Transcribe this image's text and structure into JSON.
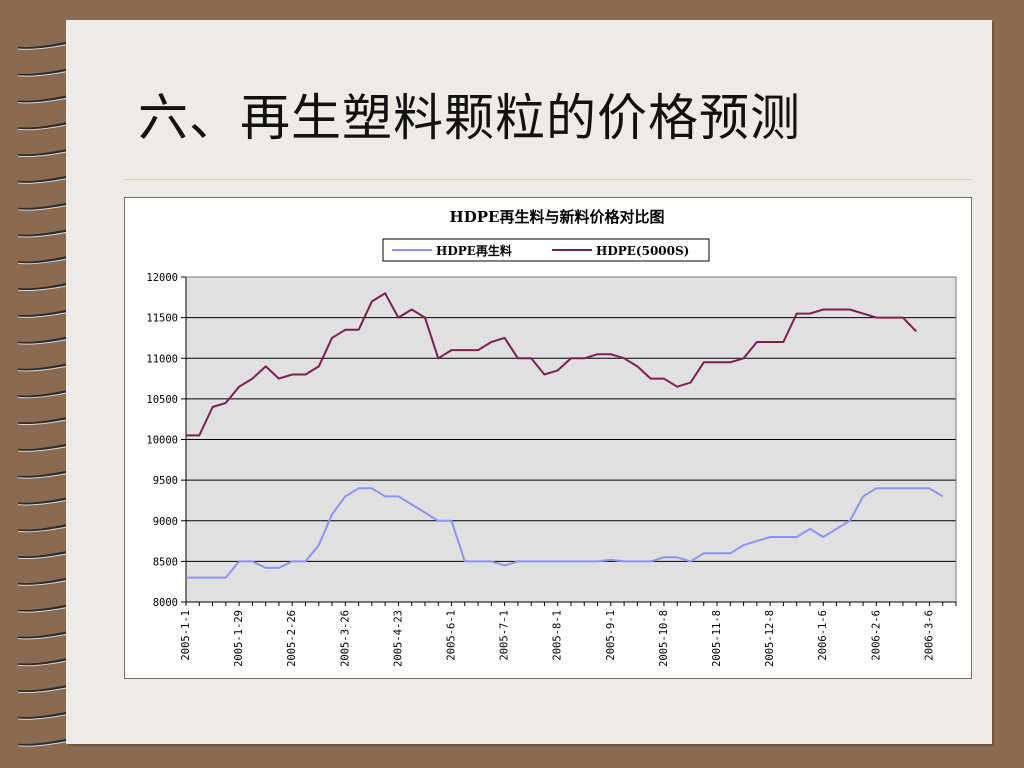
{
  "slide": {
    "title": "六、再生塑料颗粒的价格预测"
  },
  "colors": {
    "background": "#8b6a52",
    "slide": "#eeeae6",
    "plot_area": "#e0e0e0",
    "series_recycled": "#8c94f0",
    "series_virgin": "#7b2150"
  },
  "chart_data": {
    "type": "line",
    "title": "HDPE再生料与新料价格对比图",
    "xlabel": "",
    "ylabel": "",
    "ylim": [
      8000,
      12000
    ],
    "yticks": [
      8000,
      8500,
      9000,
      9500,
      10000,
      10500,
      11000,
      11500,
      12000
    ],
    "grid": true,
    "legend": "top-center",
    "x_tick_labels": [
      "2005-1-1",
      "2005-1-29",
      "2005-2-26",
      "2005-3-26",
      "2005-4-23",
      "2005-6-1",
      "2005-7-1",
      "2005-8-1",
      "2005-9-1",
      "2005-10-8",
      "2005-11-8",
      "2005-12-8",
      "2006-1-6",
      "2006-2-6",
      "2006-3-6"
    ],
    "x_tick_positions": [
      0,
      4,
      8,
      12,
      16,
      20,
      24,
      28,
      32,
      36,
      40,
      44,
      48,
      52,
      56
    ],
    "x_range": [
      0,
      58
    ],
    "series": [
      {
        "name": "HDPE再生料",
        "color": "#8c94f0",
        "x": [
          0,
          1,
          2,
          3,
          4,
          5,
          6,
          7,
          8,
          9,
          10,
          11,
          12,
          13,
          14,
          15,
          16,
          17,
          18,
          19,
          20,
          21,
          22,
          23,
          24,
          25,
          26,
          27,
          28,
          29,
          30,
          31,
          32,
          33,
          34,
          35,
          36,
          37,
          38,
          39,
          40,
          41,
          42,
          43,
          44,
          45,
          46,
          47,
          48,
          49,
          50,
          51,
          52,
          53,
          54,
          55,
          56,
          57
        ],
        "values": [
          8300,
          8300,
          8300,
          8300,
          8500,
          8500,
          8420,
          8420,
          8500,
          8500,
          8700,
          9080,
          9300,
          9400,
          9400,
          9300,
          9300,
          9200,
          9100,
          9000,
          9000,
          8500,
          8500,
          8500,
          8450,
          8500,
          8500,
          8500,
          8500,
          8500,
          8500,
          8500,
          8520,
          8500,
          8500,
          8500,
          8550,
          8550,
          8500,
          8600,
          8600,
          8600,
          8700,
          8750,
          8800,
          8800,
          8800,
          8900,
          8800,
          8900,
          9000,
          9300,
          9400,
          9400,
          9400,
          9400,
          9400,
          9300
        ]
      },
      {
        "name": "HDPE(5000S)",
        "color": "#7b2150",
        "x": [
          0,
          1,
          2,
          3,
          4,
          5,
          6,
          7,
          8,
          9,
          10,
          11,
          12,
          13,
          14,
          15,
          16,
          17,
          18,
          19,
          20,
          21,
          22,
          23,
          24,
          25,
          26,
          27,
          28,
          29,
          30,
          31,
          32,
          33,
          34,
          35,
          36,
          37,
          38,
          39,
          40,
          41,
          42,
          43,
          44,
          45,
          46,
          47,
          48,
          49,
          50,
          51,
          52,
          53,
          54,
          55
        ],
        "values": [
          10050,
          10050,
          10400,
          10450,
          10650,
          10750,
          10900,
          10750,
          10800,
          10800,
          10900,
          11250,
          11350,
          11350,
          11700,
          11800,
          11500,
          11600,
          11500,
          11000,
          11100,
          11100,
          11100,
          11200,
          11250,
          11000,
          11000,
          10800,
          10850,
          11000,
          11000,
          11050,
          11050,
          11000,
          10900,
          10750,
          10750,
          10650,
          10700,
          10950,
          10950,
          10950,
          11000,
          11200,
          11200,
          11200,
          11550,
          11550,
          11600,
          11600,
          11600,
          11550,
          11500,
          11500,
          11500,
          11330
        ]
      }
    ]
  }
}
